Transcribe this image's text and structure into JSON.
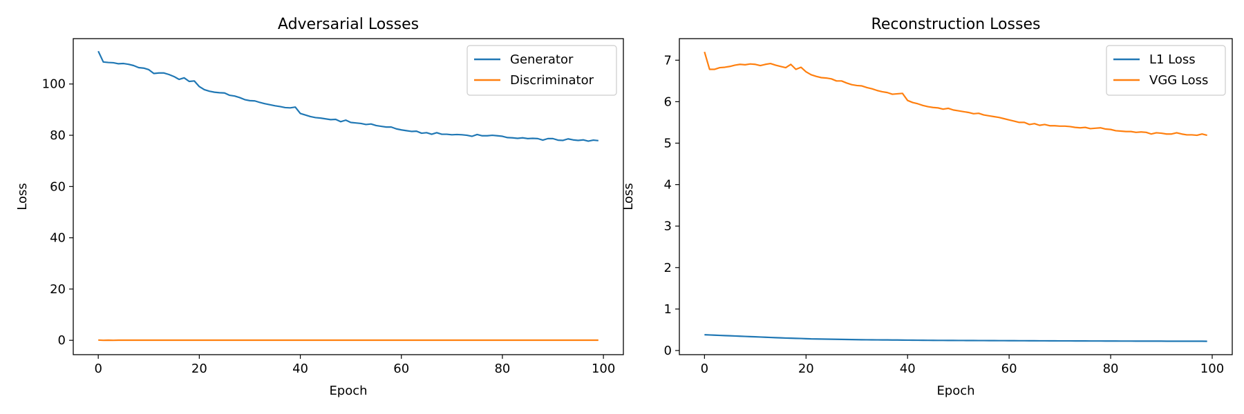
{
  "chart_data": [
    {
      "type": "line",
      "title": "Adversarial Losses",
      "xlabel": "Epoch",
      "ylabel": "Loss",
      "xlim": [
        -4.95,
        103.95
      ],
      "ylim": [
        -5.6,
        117.7
      ],
      "xticks": [
        0,
        20,
        40,
        60,
        80,
        100
      ],
      "yticks": [
        0,
        20,
        40,
        60,
        80,
        100
      ],
      "legend": "top-right",
      "series": [
        {
          "name": "Generator",
          "color": "#1f77b4",
          "x": [
            0,
            1,
            2,
            3,
            4,
            5,
            6,
            7,
            8,
            9,
            10,
            11,
            12,
            13,
            14,
            15,
            16,
            17,
            18,
            19,
            20,
            21,
            22,
            23,
            24,
            25,
            26,
            27,
            28,
            29,
            30,
            31,
            32,
            33,
            34,
            35,
            36,
            37,
            38,
            39,
            40,
            41,
            42,
            43,
            44,
            45,
            46,
            47,
            48,
            49,
            50,
            51,
            52,
            53,
            54,
            55,
            56,
            57,
            58,
            59,
            60,
            61,
            62,
            63,
            64,
            65,
            66,
            67,
            68,
            69,
            70,
            71,
            72,
            73,
            74,
            75,
            76,
            77,
            78,
            79,
            80,
            81,
            82,
            83,
            84,
            85,
            86,
            87,
            88,
            89,
            90,
            91,
            92,
            93,
            94,
            95,
            96,
            97,
            98,
            99
          ],
          "y": [
            112.8,
            108.6,
            108.4,
            108.3,
            107.9,
            108.0,
            107.7,
            107.2,
            106.4,
            106.2,
            105.6,
            104.1,
            104.3,
            104.3,
            103.7,
            102.9,
            101.8,
            102.4,
            101.0,
            101.2,
            99.0,
            97.8,
            97.2,
            96.8,
            96.6,
            96.5,
            95.6,
            95.3,
            94.7,
            93.9,
            93.5,
            93.4,
            92.8,
            92.3,
            91.9,
            91.5,
            91.2,
            90.8,
            90.7,
            91.0,
            88.5,
            87.9,
            87.3,
            86.9,
            86.7,
            86.4,
            86.1,
            86.2,
            85.3,
            85.9,
            85.0,
            84.8,
            84.6,
            84.2,
            84.4,
            83.8,
            83.5,
            83.2,
            83.2,
            82.5,
            82.1,
            81.8,
            81.5,
            81.6,
            80.8,
            81.0,
            80.4,
            81.0,
            80.4,
            80.4,
            80.2,
            80.3,
            80.2,
            80.0,
            79.6,
            80.3,
            79.8,
            79.8,
            80.0,
            79.8,
            79.6,
            79.1,
            79.0,
            78.8,
            79.0,
            78.7,
            78.8,
            78.7,
            78.1,
            78.7,
            78.7,
            78.1,
            78.0,
            78.6,
            78.2,
            78.0,
            78.2,
            77.7,
            78.1,
            77.9
          ]
        },
        {
          "name": "Discriminator",
          "color": "#ff7f0e",
          "x": [
            0,
            1,
            2,
            3,
            4,
            5,
            6,
            7,
            8,
            9,
            10,
            11,
            12,
            13,
            14,
            15,
            16,
            17,
            18,
            19,
            20,
            21,
            22,
            23,
            24,
            25,
            26,
            27,
            28,
            29,
            30,
            31,
            32,
            33,
            34,
            35,
            36,
            37,
            38,
            39,
            40,
            41,
            42,
            43,
            44,
            45,
            46,
            47,
            48,
            49,
            50,
            51,
            52,
            53,
            54,
            55,
            56,
            57,
            58,
            59,
            60,
            61,
            62,
            63,
            64,
            65,
            66,
            67,
            68,
            69,
            70,
            71,
            72,
            73,
            74,
            75,
            76,
            77,
            78,
            79,
            80,
            81,
            82,
            83,
            84,
            85,
            86,
            87,
            88,
            89,
            90,
            91,
            92,
            93,
            94,
            95,
            96,
            97,
            98,
            99
          ],
          "y": [
            0.1,
            0.0,
            0.05,
            0.0,
            0.05,
            0.05,
            0.05,
            0.05,
            0.05,
            0.05,
            0.05,
            0.05,
            0.05,
            0.05,
            0.05,
            0.05,
            0.05,
            0.05,
            0.05,
            0.05,
            0.05,
            0.05,
            0.05,
            0.05,
            0.05,
            0.05,
            0.05,
            0.05,
            0.05,
            0.05,
            0.05,
            0.05,
            0.05,
            0.05,
            0.05,
            0.05,
            0.05,
            0.05,
            0.05,
            0.05,
            0.05,
            0.05,
            0.05,
            0.05,
            0.05,
            0.05,
            0.05,
            0.05,
            0.05,
            0.05,
            0.05,
            0.05,
            0.05,
            0.05,
            0.05,
            0.05,
            0.05,
            0.05,
            0.05,
            0.05,
            0.05,
            0.05,
            0.05,
            0.05,
            0.05,
            0.05,
            0.05,
            0.05,
            0.05,
            0.05,
            0.05,
            0.05,
            0.05,
            0.05,
            0.05,
            0.05,
            0.05,
            0.05,
            0.05,
            0.05,
            0.05,
            0.05,
            0.05,
            0.05,
            0.05,
            0.05,
            0.05,
            0.05,
            0.05,
            0.05,
            0.05,
            0.05,
            0.05,
            0.05,
            0.05,
            0.05,
            0.05,
            0.05,
            0.05,
            0.05
          ]
        }
      ]
    },
    {
      "type": "line",
      "title": "Reconstruction Losses",
      "xlabel": "Epoch",
      "ylabel": "Loss",
      "xlim": [
        -4.95,
        103.95
      ],
      "ylim": [
        -0.1,
        7.52
      ],
      "xticks": [
        0,
        20,
        40,
        60,
        80,
        100
      ],
      "yticks": [
        0,
        1,
        2,
        3,
        4,
        5,
        6,
        7
      ],
      "legend": "top-right",
      "series": [
        {
          "name": "L1 Loss",
          "color": "#1f77b4",
          "x": [
            0,
            1,
            2,
            3,
            4,
            5,
            6,
            7,
            8,
            9,
            10,
            11,
            12,
            13,
            14,
            15,
            16,
            17,
            18,
            19,
            20,
            21,
            22,
            23,
            24,
            25,
            26,
            27,
            28,
            29,
            30,
            31,
            32,
            33,
            34,
            35,
            36,
            37,
            38,
            39,
            40,
            41,
            42,
            43,
            44,
            45,
            46,
            47,
            48,
            49,
            50,
            51,
            52,
            53,
            54,
            55,
            56,
            57,
            58,
            59,
            60,
            61,
            62,
            63,
            64,
            65,
            66,
            67,
            68,
            69,
            70,
            71,
            72,
            73,
            74,
            75,
            76,
            77,
            78,
            79,
            80,
            81,
            82,
            83,
            84,
            85,
            86,
            87,
            88,
            89,
            90,
            91,
            92,
            93,
            94,
            95,
            96,
            97,
            98,
            99
          ],
          "y": [
            0.38,
            0.375,
            0.37,
            0.365,
            0.36,
            0.355,
            0.35,
            0.345,
            0.34,
            0.335,
            0.33,
            0.325,
            0.32,
            0.315,
            0.31,
            0.305,
            0.3,
            0.297,
            0.293,
            0.29,
            0.285,
            0.28,
            0.278,
            0.276,
            0.274,
            0.272,
            0.27,
            0.268,
            0.266,
            0.264,
            0.262,
            0.26,
            0.259,
            0.258,
            0.257,
            0.256,
            0.255,
            0.254,
            0.253,
            0.252,
            0.25,
            0.249,
            0.248,
            0.247,
            0.246,
            0.245,
            0.244,
            0.244,
            0.243,
            0.243,
            0.242,
            0.242,
            0.241,
            0.241,
            0.24,
            0.24,
            0.239,
            0.239,
            0.238,
            0.238,
            0.237,
            0.237,
            0.236,
            0.236,
            0.235,
            0.235,
            0.234,
            0.234,
            0.233,
            0.233,
            0.232,
            0.232,
            0.232,
            0.231,
            0.231,
            0.231,
            0.23,
            0.23,
            0.23,
            0.229,
            0.229,
            0.229,
            0.228,
            0.228,
            0.228,
            0.227,
            0.227,
            0.227,
            0.226,
            0.226,
            0.226,
            0.225,
            0.225,
            0.225,
            0.225,
            0.224,
            0.224,
            0.224,
            0.224,
            0.223
          ]
        },
        {
          "name": "VGG Loss",
          "color": "#ff7f0e",
          "x": [
            0,
            1,
            2,
            3,
            4,
            5,
            6,
            7,
            8,
            9,
            10,
            11,
            12,
            13,
            14,
            15,
            16,
            17,
            18,
            19,
            20,
            21,
            22,
            23,
            24,
            25,
            26,
            27,
            28,
            29,
            30,
            31,
            32,
            33,
            34,
            35,
            36,
            37,
            38,
            39,
            40,
            41,
            42,
            43,
            44,
            45,
            46,
            47,
            48,
            49,
            50,
            51,
            52,
            53,
            54,
            55,
            56,
            57,
            58,
            59,
            60,
            61,
            62,
            63,
            64,
            65,
            66,
            67,
            68,
            69,
            70,
            71,
            72,
            73,
            74,
            75,
            76,
            77,
            78,
            79,
            80,
            81,
            82,
            83,
            84,
            85,
            86,
            87,
            88,
            89,
            90,
            91,
            92,
            93,
            94,
            95,
            96,
            97,
            98,
            99
          ],
          "y": [
            7.2,
            6.78,
            6.78,
            6.82,
            6.83,
            6.85,
            6.88,
            6.9,
            6.89,
            6.91,
            6.9,
            6.87,
            6.9,
            6.92,
            6.88,
            6.85,
            6.82,
            6.9,
            6.78,
            6.83,
            6.72,
            6.65,
            6.61,
            6.58,
            6.57,
            6.55,
            6.5,
            6.5,
            6.45,
            6.41,
            6.39,
            6.38,
            6.34,
            6.31,
            6.27,
            6.24,
            6.22,
            6.18,
            6.19,
            6.2,
            6.03,
            5.98,
            5.95,
            5.91,
            5.88,
            5.86,
            5.85,
            5.82,
            5.84,
            5.8,
            5.78,
            5.76,
            5.74,
            5.71,
            5.72,
            5.68,
            5.66,
            5.64,
            5.62,
            5.59,
            5.56,
            5.53,
            5.5,
            5.5,
            5.45,
            5.47,
            5.43,
            5.45,
            5.42,
            5.42,
            5.41,
            5.41,
            5.4,
            5.38,
            5.37,
            5.38,
            5.35,
            5.36,
            5.37,
            5.34,
            5.33,
            5.3,
            5.29,
            5.28,
            5.28,
            5.26,
            5.27,
            5.26,
            5.22,
            5.25,
            5.24,
            5.22,
            5.22,
            5.25,
            5.22,
            5.2,
            5.2,
            5.19,
            5.22,
            5.19
          ]
        }
      ]
    }
  ]
}
